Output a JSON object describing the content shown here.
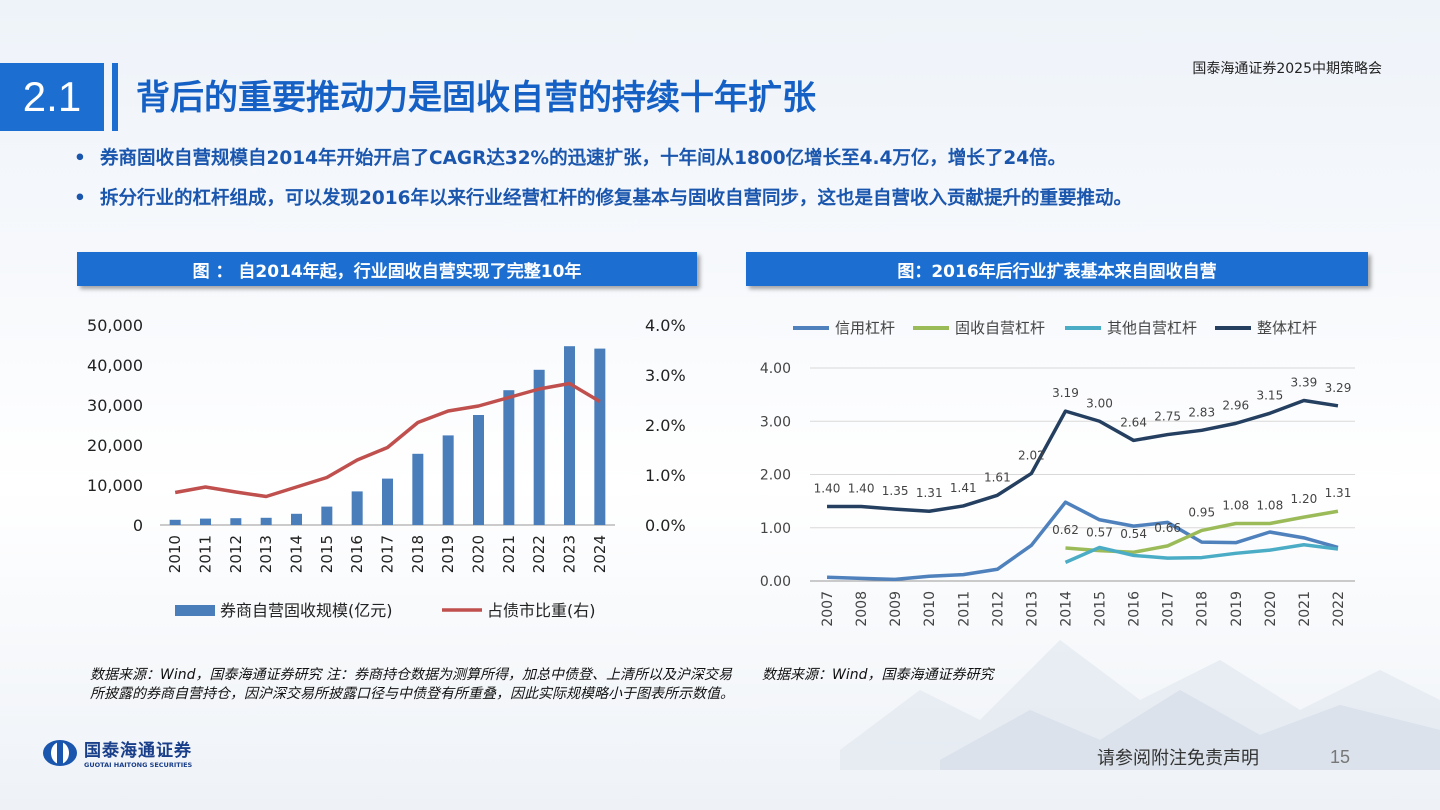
{
  "header": {
    "event": "国泰海通证券2025中期策略会",
    "section": "2.1",
    "title": "背后的重要推动力是固收自营的持续十年扩张"
  },
  "bullets": [
    "券商固收自营规模自2014年开始开启了CAGR达32%的迅速扩张，十年间从1800亿增长至4.4万亿，增长了24倍。",
    "拆分行业的杠杆组成，可以发现2016年以来行业经营杠杆的修复基本与固收自营同步，这也是自营收入贡献提升的重要推动。"
  ],
  "bullet_marker": "•",
  "figures": [
    {
      "heading": "图 ： 自2014年起，行业固收自营实现了完整10年",
      "source": "数据来源：Wind，国泰海通证券研究  注：券商持仓数据为测算所得，加总中债登、上清所以及沪深交易所披露的券商自营持仓，因沪深交易所披露口径与中债登有所重叠，因此实际规模略小于图表所示数值。"
    },
    {
      "heading": "图：2016年后行业扩表基本来自固收自营",
      "source": "数据来源：Wind，国泰海通证券研究"
    }
  ],
  "footer": {
    "logo_cn": "国泰海通证券",
    "logo_en": "GUOTAI HAITONG SECURITIES",
    "disclaimer": "请参阅附注免责声明",
    "page": "15"
  },
  "chart_data": [
    {
      "type": "bar",
      "categories": [
        "2010",
        "2011",
        "2012",
        "2013",
        "2014",
        "2015",
        "2016",
        "2017",
        "2018",
        "2019",
        "2020",
        "2021",
        "2022",
        "2023",
        "2024"
      ],
      "series": [
        {
          "name": "券商自营固收规模(亿元)",
          "type": "bar",
          "axis": "left",
          "color": "#4a7ebb",
          "values": [
            1300,
            1600,
            1700,
            1800,
            2800,
            4600,
            8400,
            11600,
            17800,
            22400,
            27500,
            33700,
            38800,
            44700,
            44100
          ]
        },
        {
          "name": "占债市比重(右)",
          "type": "line",
          "axis": "right",
          "color": "#c0504d",
          "values": [
            0.65,
            0.76,
            0.66,
            0.57,
            0.76,
            0.95,
            1.3,
            1.55,
            2.05,
            2.28,
            2.38,
            2.55,
            2.72,
            2.83,
            2.47
          ]
        }
      ],
      "y_left": {
        "min": 0,
        "max": 50000,
        "ticks": [
          "0",
          "10,000",
          "20,000",
          "30,000",
          "40,000",
          "50,000"
        ]
      },
      "y_right": {
        "min": 0,
        "max": 4.0,
        "ticks": [
          "0.0%",
          "1.0%",
          "2.0%",
          "3.0%",
          "4.0%"
        ]
      },
      "legend_position": "bottom",
      "grid": false
    },
    {
      "type": "line",
      "categories": [
        "2007",
        "2008",
        "2009",
        "2010",
        "2011",
        "2012",
        "2013",
        "2014",
        "2015",
        "2016",
        "2017",
        "2018",
        "2019",
        "2020",
        "2021",
        "2022"
      ],
      "series": [
        {
          "name": "信用杠杆",
          "color": "#4f81bd",
          "values": [
            0.07,
            0.05,
            0.03,
            0.09,
            0.12,
            0.22,
            0.67,
            1.48,
            1.15,
            1.03,
            1.1,
            0.73,
            0.72,
            0.92,
            0.81,
            0.63
          ]
        },
        {
          "name": "固收自营杠杆",
          "color": "#9bbb59",
          "values": [
            null,
            null,
            null,
            null,
            null,
            null,
            null,
            0.62,
            0.57,
            0.54,
            0.66,
            0.95,
            1.08,
            1.08,
            1.2,
            1.31
          ],
          "labels": [
            "",
            "",
            "",
            "",
            "",
            "",
            "",
            "0.62",
            "0.57",
            "0.54",
            "0.66",
            "0.95",
            "1.08",
            "1.08",
            "1.20",
            "1.31"
          ]
        },
        {
          "name": "其他自营杠杆",
          "color": "#4bacc6",
          "values": [
            null,
            null,
            null,
            null,
            null,
            null,
            null,
            0.35,
            0.63,
            0.48,
            0.43,
            0.44,
            0.52,
            0.58,
            0.68,
            0.6
          ]
        },
        {
          "name": "整体杠杆",
          "color": "#243f60",
          "values": [
            1.4,
            1.4,
            1.35,
            1.31,
            1.41,
            1.61,
            2.02,
            3.19,
            3.0,
            2.64,
            2.75,
            2.83,
            2.96,
            3.15,
            3.39,
            3.29
          ],
          "labels": [
            "1.40",
            "1.40",
            "1.35",
            "1.31",
            "1.41",
            "1.61",
            "2.02",
            "3.19",
            "3.00",
            "2.64",
            "2.75",
            "2.83",
            "2.96",
            "3.15",
            "3.39",
            "3.29"
          ]
        }
      ],
      "y": {
        "min": 0,
        "max": 4.0,
        "ticks": [
          "0.00",
          "1.00",
          "2.00",
          "3.00",
          "4.00"
        ]
      },
      "legend_position": "top",
      "grid": true
    }
  ]
}
